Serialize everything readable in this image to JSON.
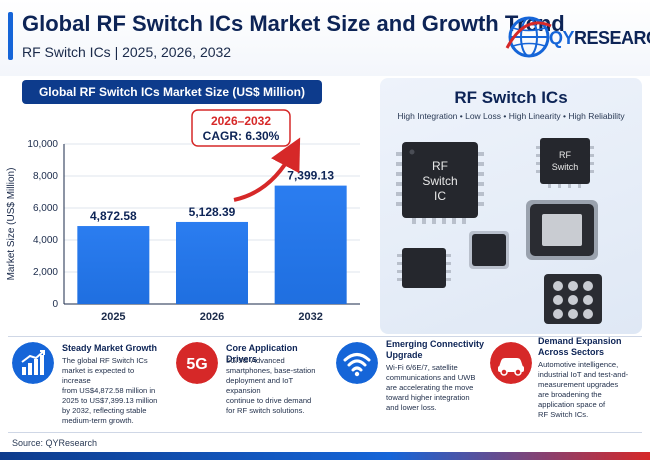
{
  "header": {
    "title": "Global RF Switch ICs Market Size and Growth Trend",
    "subtitle": "RF Switch ICs  |  2025, 2026, 2032"
  },
  "logo": {
    "prefix": "QY",
    "suffix": "RESEARCH",
    "colors": {
      "prefix": "#1565d8",
      "suffix": "#0d2456",
      "globe": "#1565d8",
      "ring": "#d62828"
    }
  },
  "chart_banner": "Global RF Switch ICs Market Size (US$ Million)",
  "chart_data": {
    "type": "bar",
    "categories": [
      "2025",
      "2026",
      "2032"
    ],
    "values": [
      4872.58,
      5128.39,
      7399.13
    ],
    "value_labels": [
      "4,872.58",
      "5,128.39",
      "7,399.13"
    ],
    "title": "Global RF Switch ICs Market Size (US$ Million)",
    "xlabel": "",
    "ylabel": "Market Size (US$ Million)",
    "ylim": [
      0,
      10000
    ],
    "yticks": [
      "0",
      "2,000",
      "4,000",
      "6,000",
      "8,000",
      "10,000"
    ],
    "grid": true,
    "bar_color": "#1f6fe0",
    "annotation": {
      "period": "2026–2032",
      "cagr": "CAGR: 6.30%",
      "color": "#d62828"
    }
  },
  "product": {
    "title": "RF Switch ICs",
    "tags": "High Integration  •  Low Loss  •  High Linearity  •  High Reliability",
    "chip_large_label": [
      "RF",
      "Switch",
      "IC"
    ],
    "chip_small_label": [
      "RF",
      "Switch"
    ]
  },
  "features": [
    {
      "icon": "growth-chart-icon",
      "title": "Steady Market Growth",
      "body": [
        "The global RF Switch ICs",
        "market is expected to increase",
        "from US$4,872.58 million in",
        "2025 to US$7,399.13 million",
        "by 2032, reflecting stable",
        "medium-term growth."
      ]
    },
    {
      "icon": "5g-icon",
      "icon_text": "5G",
      "title": "Core Application Drivers",
      "body": [
        "5G/5G-Advanced",
        "smartphones, base-station",
        "deployment and IoT expansion",
        "continue to drive demand",
        "for RF switch solutions."
      ]
    },
    {
      "icon": "wifi-icon",
      "title": "Emerging Connectivity Upgrade",
      "title_lines": [
        "Emerging Connectivity",
        "Upgrade"
      ],
      "body": [
        "Wi-Fi 6/6E/7, satellite",
        "communications and UWB",
        "are accelerating the move",
        "toward higher integration",
        "and lower loss."
      ]
    },
    {
      "icon": "car-icon",
      "title": "Demand Expansion Across Sectors",
      "title_lines": [
        "Demand Expansion",
        "Across Sectors"
      ],
      "body": [
        "Automotive intelligence,",
        "industrial IoT and test-and-",
        "measurement upgrades",
        "are broadening the",
        "application space of",
        "RF Switch ICs."
      ]
    }
  ],
  "source": "Source:  QYResearch"
}
